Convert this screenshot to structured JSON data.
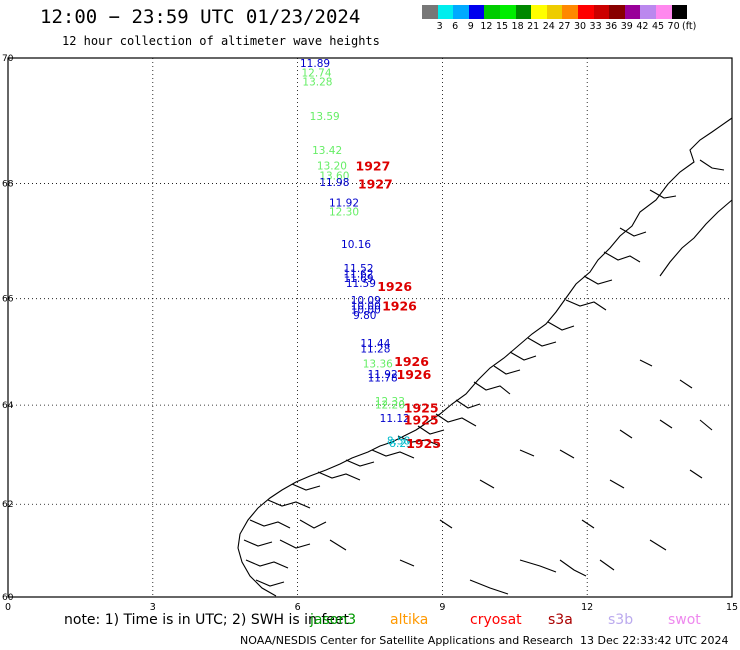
{
  "header": {
    "title": "12:00 − 23:59 UTC 01/23/2024",
    "subtitle": "12 hour collection of altimeter wave heights"
  },
  "colorbar": {
    "swatches": [
      "#777777",
      "#00eeee",
      "#00aaff",
      "#0000ee",
      "#00cc00",
      "#00ee00",
      "#008800",
      "#ffff00",
      "#eecc00",
      "#ff8800",
      "#ff0000",
      "#cc0000",
      "#880000",
      "#990099",
      "#bb88ee",
      "#ff88ee",
      "#000000"
    ],
    "labels": [
      "3",
      "6",
      "9",
      "12",
      "15",
      "18",
      "21",
      "24",
      "27",
      "30",
      "33",
      "36",
      "39",
      "42",
      "45",
      "70",
      "(ft)"
    ]
  },
  "chart_data": {
    "type": "scatter",
    "xlim": [
      0,
      15
    ],
    "ylim": [
      60,
      70
    ],
    "x_ticks": [
      "0",
      "3",
      "6",
      "9",
      "12",
      "15"
    ],
    "y_ticks": [
      "70",
      "68",
      "66",
      "64",
      "62",
      "60"
    ],
    "grid": true,
    "wave_heights": [
      {
        "lon": 6.05,
        "lat": 69.92,
        "value": "11.89",
        "color": "#0000cc"
      },
      {
        "lon": 6.08,
        "lat": 69.78,
        "value": "12.74",
        "color": "#66ee66"
      },
      {
        "lon": 6.1,
        "lat": 69.64,
        "value": "13.28",
        "color": "#66ee66"
      },
      {
        "lon": 6.25,
        "lat": 69.1,
        "value": "13.59",
        "color": "#66ee66"
      },
      {
        "lon": 6.3,
        "lat": 68.55,
        "value": "13.42",
        "color": "#66ee66"
      },
      {
        "lon": 6.4,
        "lat": 68.3,
        "value": "13.20",
        "color": "#66ee66"
      },
      {
        "lon": 6.45,
        "lat": 68.13,
        "value": "13.60",
        "color": "#66ee66"
      },
      {
        "lon": 6.45,
        "lat": 68.03,
        "value": "11.98",
        "color": "#0000cc"
      },
      {
        "lon": 6.65,
        "lat": 67.68,
        "value": "11.92",
        "color": "#0000cc"
      },
      {
        "lon": 6.65,
        "lat": 67.53,
        "value": "12.30",
        "color": "#66ee66"
      },
      {
        "lon": 6.9,
        "lat": 66.97,
        "value": "10.16",
        "color": "#0000cc"
      },
      {
        "lon": 6.95,
        "lat": 66.55,
        "value": "11.52",
        "color": "#0000cc"
      },
      {
        "lon": 6.95,
        "lat": 66.45,
        "value": "11.62",
        "color": "#0000cc"
      },
      {
        "lon": 6.95,
        "lat": 66.37,
        "value": "11.69",
        "color": "#0000cc"
      },
      {
        "lon": 7.0,
        "lat": 66.28,
        "value": "11.59",
        "color": "#0000cc"
      },
      {
        "lon": 7.1,
        "lat": 65.98,
        "value": "10.09",
        "color": "#0000cc"
      },
      {
        "lon": 7.1,
        "lat": 65.88,
        "value": "10.00",
        "color": "#0000cc"
      },
      {
        "lon": 7.1,
        "lat": 65.8,
        "value": "10.00",
        "color": "#0000cc"
      },
      {
        "lon": 7.15,
        "lat": 65.7,
        "value": "9.80",
        "color": "#0000cc"
      },
      {
        "lon": 7.3,
        "lat": 65.19,
        "value": "11.44",
        "color": "#0000cc"
      },
      {
        "lon": 7.3,
        "lat": 65.08,
        "value": "11.28",
        "color": "#0000cc"
      },
      {
        "lon": 7.35,
        "lat": 64.8,
        "value": "13.36",
        "color": "#66ee66"
      },
      {
        "lon": 7.45,
        "lat": 64.6,
        "value": "11.92",
        "color": "#0000cc"
      },
      {
        "lon": 7.45,
        "lat": 64.53,
        "value": "11.78",
        "color": "#0000cc"
      },
      {
        "lon": 7.6,
        "lat": 64.08,
        "value": "12.33",
        "color": "#66ee66"
      },
      {
        "lon": 7.6,
        "lat": 64.01,
        "value": "12.20",
        "color": "#66ee66"
      },
      {
        "lon": 7.7,
        "lat": 63.75,
        "value": "11.12",
        "color": "#0000cc"
      },
      {
        "lon": 7.85,
        "lat": 63.3,
        "value": "8.58",
        "color": "#00bbcc"
      },
      {
        "lon": 7.9,
        "lat": 63.25,
        "value": "8.25",
        "color": "#00bbcc"
      }
    ],
    "pass_labels": [
      {
        "lon": 7.2,
        "lat": 68.3,
        "text": "1927"
      },
      {
        "lon": 7.25,
        "lat": 68.0,
        "text": "1927"
      },
      {
        "lon": 7.65,
        "lat": 66.23,
        "text": "1926"
      },
      {
        "lon": 7.75,
        "lat": 65.88,
        "text": "1926"
      },
      {
        "lon": 8.0,
        "lat": 64.85,
        "text": "1926"
      },
      {
        "lon": 8.05,
        "lat": 64.6,
        "text": "1926"
      },
      {
        "lon": 8.2,
        "lat": 63.95,
        "text": "1925"
      },
      {
        "lon": 8.2,
        "lat": 63.72,
        "text": "1925"
      },
      {
        "lon": 8.25,
        "lat": 63.25,
        "text": "1925"
      }
    ]
  },
  "footer": {
    "note": "note: 1) Time is in UTC; 2) SWH is in feet",
    "missions": [
      {
        "name": "jason3",
        "color": "#009900"
      },
      {
        "name": "altika",
        "color": "#ff9900"
      },
      {
        "name": "cryosat",
        "color": "#ff0000"
      },
      {
        "name": "s3a",
        "color": "#aa0000"
      },
      {
        "name": "s3b",
        "color": "#bbaaee"
      },
      {
        "name": "swot",
        "color": "#ee88ee"
      }
    ],
    "credit": "NOAA/NESDIS Center for Satellite Applications and Research",
    "timestamp": "13 Dec 22:33:42 UTC 2024"
  }
}
